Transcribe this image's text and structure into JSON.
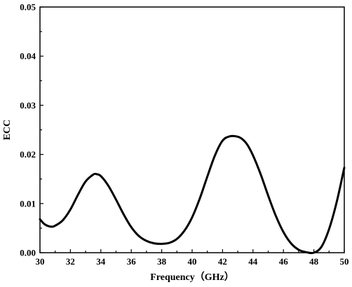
{
  "chart_data": {
    "type": "line",
    "title": "",
    "xlabel": "Frequency（GHz）",
    "ylabel": "ECC",
    "xlim": [
      30,
      50
    ],
    "ylim": [
      0,
      0.05
    ],
    "xticks": [
      30,
      32,
      34,
      36,
      38,
      40,
      42,
      44,
      46,
      48,
      50
    ],
    "yticks": [
      0.0,
      0.01,
      0.02,
      0.03,
      0.04,
      0.05
    ],
    "ytick_labels": [
      "0.00",
      "0.01",
      "0.02",
      "0.03",
      "0.04",
      "0.05"
    ],
    "grid": false,
    "legend": "none",
    "line_color": "#000000",
    "series": [
      {
        "x": [
          30.0,
          30.3,
          30.7,
          31.0,
          31.5,
          32.0,
          32.5,
          33.0,
          33.5,
          33.7,
          34.0,
          34.5,
          35.0,
          35.5,
          36.0,
          36.5,
          37.0,
          37.5,
          38.0,
          38.5,
          39.0,
          39.5,
          40.0,
          40.5,
          41.0,
          41.5,
          42.0,
          42.5,
          43.0,
          43.3,
          43.6,
          44.0,
          44.5,
          45.0,
          45.5,
          46.0,
          46.5,
          47.0,
          47.5,
          48.0,
          48.5,
          49.0,
          49.5,
          50.0
        ],
        "y": [
          0.0068,
          0.0058,
          0.0053,
          0.0055,
          0.0066,
          0.0088,
          0.0118,
          0.0145,
          0.0159,
          0.016,
          0.0156,
          0.0136,
          0.0108,
          0.0078,
          0.0052,
          0.0034,
          0.0024,
          0.0019,
          0.0018,
          0.002,
          0.0028,
          0.0045,
          0.0072,
          0.011,
          0.0155,
          0.0198,
          0.0228,
          0.0237,
          0.0236,
          0.0231,
          0.0221,
          0.0198,
          0.016,
          0.0116,
          0.0075,
          0.0042,
          0.0019,
          0.0006,
          0.0001,
          0.0,
          0.0012,
          0.0048,
          0.0103,
          0.0173
        ]
      }
    ]
  }
}
